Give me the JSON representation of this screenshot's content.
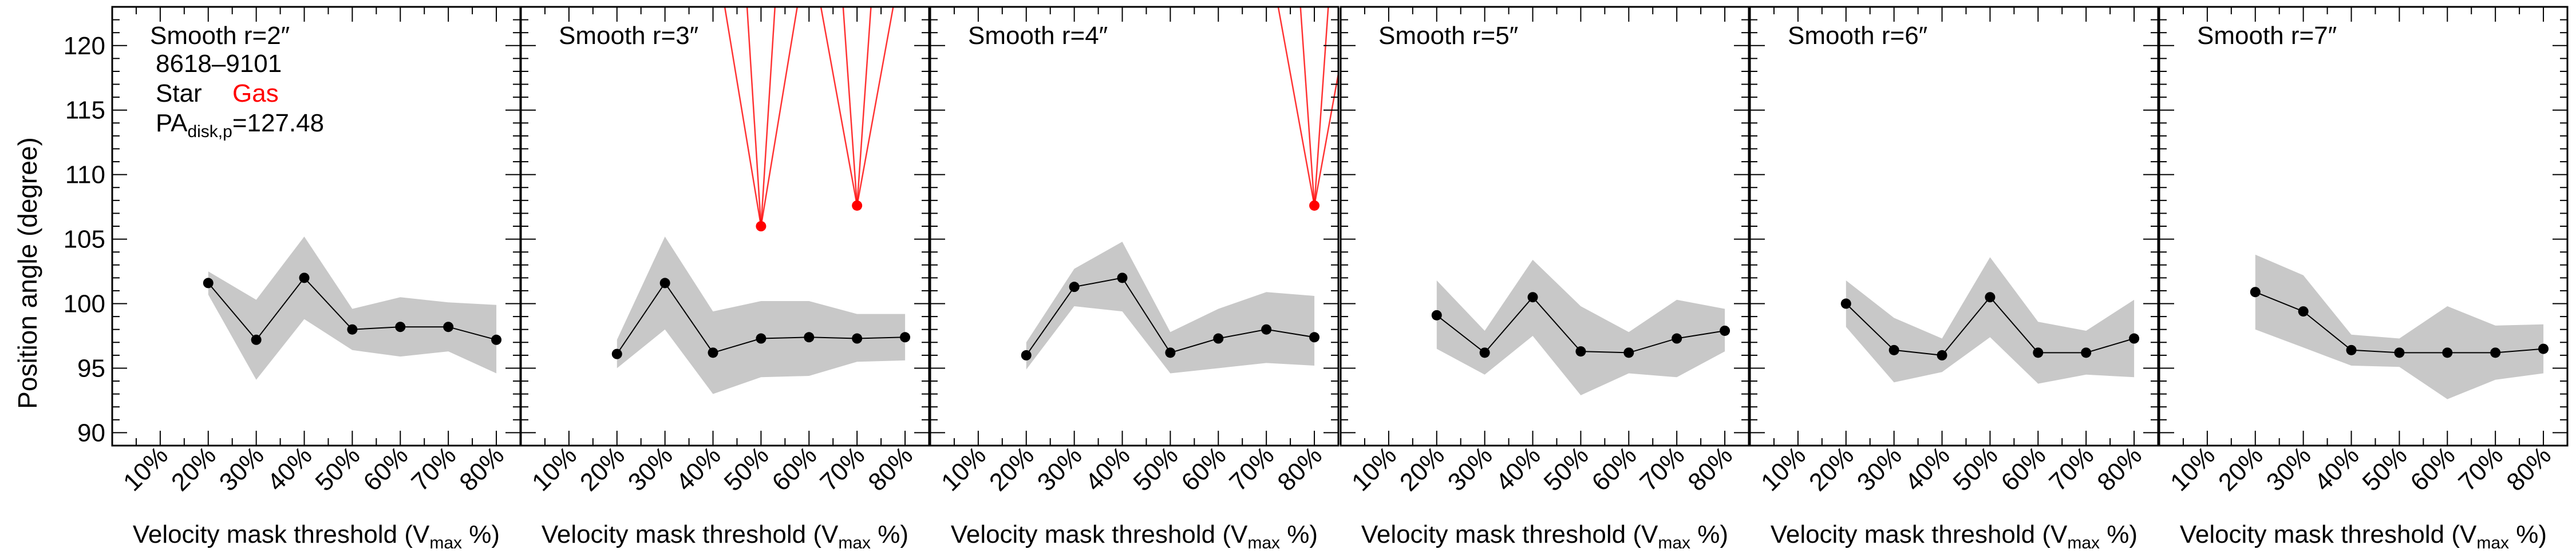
{
  "chart_data": {
    "type": "line",
    "object_id": "8618–9101",
    "pa_label": "PA",
    "pa_label_sub": "disk,p",
    "pa_value": "=127.48",
    "legend": {
      "star": "Star",
      "gas": "Gas"
    },
    "ylabel": "Position angle (degree)",
    "xlabel_main": "Velocity mask threshold (V",
    "xlabel_sub": "max",
    "xlabel_tail": " %)",
    "categories": [
      "10%",
      "20%",
      "30%",
      "40%",
      "50%",
      "60%",
      "70%",
      "80%"
    ],
    "x_values": [
      10,
      20,
      30,
      40,
      50,
      60,
      70,
      80
    ],
    "xlim": [
      0,
      85
    ],
    "ylim": [
      89,
      123
    ],
    "yticks": [
      90,
      95,
      100,
      105,
      110,
      115,
      120
    ],
    "colors": {
      "star": "#000000",
      "gas": "#ff0000",
      "band": "#c8c8c8"
    },
    "panels": [
      {
        "title": "Smooth r=2″",
        "star": [
          null,
          101.6,
          97.2,
          102.0,
          98.0,
          98.2,
          98.2,
          97.2
        ],
        "band_upper": [
          null,
          102.5,
          100.3,
          105.2,
          99.6,
          100.5,
          100.1,
          99.9
        ],
        "band_lower": [
          null,
          100.7,
          94.1,
          98.8,
          96.4,
          95.9,
          96.3,
          94.6
        ],
        "gas": [
          null,
          null,
          null,
          null,
          null,
          null,
          null,
          null
        ]
      },
      {
        "title": "Smooth r=3″",
        "star": [
          null,
          96.1,
          101.6,
          96.2,
          97.3,
          97.4,
          97.3,
          97.4
        ],
        "band_upper": [
          null,
          97.2,
          105.2,
          99.4,
          100.2,
          100.2,
          99.2,
          99.2
        ],
        "band_lower": [
          null,
          95.0,
          98.0,
          93.0,
          94.3,
          94.4,
          95.5,
          95.6
        ],
        "gas": [
          null,
          null,
          null,
          null,
          106.0,
          null,
          107.6,
          null
        ]
      },
      {
        "title": "Smooth r=4″",
        "star": [
          null,
          96.0,
          101.3,
          102.0,
          96.2,
          97.3,
          98.0,
          97.4
        ],
        "band_upper": [
          null,
          97.0,
          102.7,
          104.8,
          97.8,
          99.6,
          100.9,
          100.6
        ],
        "band_lower": [
          null,
          94.9,
          99.8,
          99.4,
          94.6,
          95.0,
          95.4,
          95.2
        ],
        "gas": [
          null,
          null,
          null,
          null,
          null,
          null,
          null,
          107.6
        ]
      },
      {
        "title": "Smooth r=5″",
        "star": [
          null,
          99.1,
          96.2,
          100.5,
          96.3,
          96.2,
          97.3,
          97.9
        ],
        "band_upper": [
          null,
          101.8,
          97.9,
          103.4,
          99.8,
          97.8,
          100.3,
          99.6
        ],
        "band_lower": [
          null,
          96.5,
          94.5,
          97.5,
          92.9,
          94.6,
          94.3,
          96.3
        ],
        "gas": [
          null,
          null,
          null,
          null,
          null,
          null,
          null,
          null
        ]
      },
      {
        "title": "Smooth r=6″",
        "star": [
          null,
          100.0,
          96.4,
          96.0,
          100.5,
          96.2,
          96.2,
          97.3
        ],
        "band_upper": [
          null,
          101.8,
          98.9,
          97.3,
          103.6,
          98.6,
          97.9,
          100.3
        ],
        "band_lower": [
          null,
          98.2,
          93.9,
          94.7,
          97.4,
          93.8,
          94.5,
          94.3
        ],
        "gas": [
          null,
          null,
          null,
          null,
          null,
          null,
          null,
          null
        ]
      },
      {
        "title": "Smooth r=7″",
        "star": [
          null,
          100.9,
          99.4,
          96.4,
          96.2,
          96.2,
          96.2,
          96.5
        ],
        "band_upper": [
          null,
          103.8,
          102.2,
          97.6,
          97.3,
          99.8,
          98.3,
          98.4
        ],
        "band_lower": [
          null,
          98.0,
          96.6,
          95.2,
          95.1,
          92.6,
          94.1,
          94.6
        ],
        "gas": [
          null,
          null,
          null,
          null,
          null,
          null,
          null,
          null
        ]
      }
    ]
  }
}
